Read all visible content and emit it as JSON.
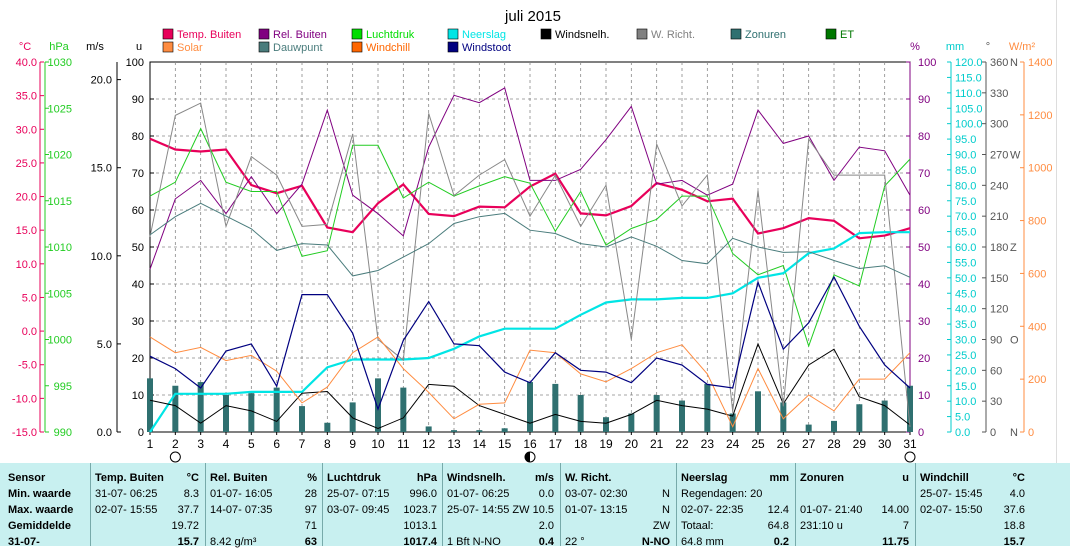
{
  "chart_data": {
    "type": "line",
    "title": "juli 2015",
    "x": [
      1,
      2,
      3,
      4,
      5,
      6,
      7,
      8,
      9,
      10,
      11,
      12,
      13,
      14,
      15,
      16,
      17,
      18,
      19,
      20,
      21,
      22,
      23,
      24,
      25,
      26,
      27,
      28,
      29,
      30,
      31
    ],
    "axes": {
      "temp_c": {
        "label": "°C",
        "range": [
          -15,
          40
        ],
        "ticks": [
          "40.0",
          "35.0",
          "30.0",
          "25.0",
          "20.0",
          "15.0",
          "10.0",
          "5.0",
          "0.0",
          "-5.0",
          "-10.0",
          "-15.0"
        ]
      },
      "pressure_hpa": {
        "label": "hPa",
        "range": [
          990,
          1030
        ],
        "ticks": [
          "1030",
          "1025",
          "1020",
          "1015",
          "1010",
          "1005",
          "1000",
          "995",
          "990"
        ]
      },
      "wind_ms": {
        "label": "m/s",
        "range": [
          0,
          21
        ],
        "ticks": [
          "20.0",
          "15.0",
          "10.0",
          "5.0",
          "0.0"
        ]
      },
      "hours_u": {
        "label": "u",
        "range": [
          0,
          100
        ],
        "ticks": [
          "100",
          "90",
          "80",
          "70",
          "60",
          "50",
          "40",
          "30",
          "20",
          "10",
          "0"
        ]
      },
      "humidity_pct": {
        "label": "%",
        "range": [
          0,
          100
        ],
        "ticks": [
          "100",
          "90",
          "80",
          "70",
          "60",
          "50",
          "40",
          "30",
          "20",
          "10",
          "0"
        ]
      },
      "rain_mm": {
        "label": "mm",
        "range": [
          0,
          120
        ],
        "ticks": [
          "120.0",
          "115.0",
          "110.0",
          "105.0",
          "100.0",
          "95.0",
          "90.0",
          "85.0",
          "80.0",
          "75.0",
          "70.0",
          "65.0",
          "60.0",
          "55.0",
          "50.0",
          "45.0",
          "40.0",
          "35.0",
          "30.0",
          "25.0",
          "20.0",
          "15.0",
          "10.0",
          "5.0",
          "0.0"
        ]
      },
      "direction_deg": {
        "label": "°",
        "range": [
          0,
          360
        ],
        "ticks": [
          "360",
          "330",
          "300",
          "270",
          "240",
          "210",
          "180",
          "150",
          "120",
          "90",
          "60",
          "30",
          "0"
        ],
        "compass": {
          "360": "N",
          "270": "W",
          "180": "Z",
          "90": "O",
          "0": "N"
        }
      },
      "solar_wm2": {
        "label": "W/m²",
        "range": [
          0,
          1400
        ],
        "ticks": [
          "1400",
          "1200",
          "1000",
          "800",
          "600",
          "400",
          "200",
          "0"
        ]
      }
    },
    "legend": [
      {
        "name": "Temp. Buiten",
        "color": "#e8005a"
      },
      {
        "name": "Rel. Buiten",
        "color": "#800080"
      },
      {
        "name": "Luchtdruk",
        "color": "#00dd00"
      },
      {
        "name": "Neerslag",
        "color": "#00e5e5"
      },
      {
        "name": "Windsnelh.",
        "color": "#000000"
      },
      {
        "name": "W. Richt.",
        "color": "#808080"
      },
      {
        "name": "Zonuren",
        "color": "#2f7070"
      },
      {
        "name": "ET",
        "color": "#007700"
      },
      {
        "name": "Solar",
        "color": "#ff8c40"
      },
      {
        "name": "Dauwpunt",
        "color": "#4a7c7c"
      },
      {
        "name": "Windchill",
        "color": "#ff6600"
      },
      {
        "name": "Windstoot",
        "color": "#000080"
      }
    ],
    "series": [
      {
        "name": "Temp. Buiten",
        "axis": "temp_c",
        "color": "#e8005a",
        "width": 2.2,
        "values": [
          28.6,
          27.0,
          26.7,
          27.0,
          21.7,
          20.5,
          21.6,
          15.4,
          14.7,
          19.0,
          21.8,
          17.4,
          17.1,
          18.5,
          18.4,
          21.5,
          23.4,
          17.5,
          17.2,
          18.6,
          22.0,
          21.0,
          19.3,
          19.7,
          14.5,
          15.3,
          16.8,
          16.4,
          13.8,
          14.2,
          15.3
        ]
      },
      {
        "name": "Rel. Buiten",
        "axis": "humidity_pct",
        "color": "#800080",
        "width": 1,
        "values": [
          44,
          63,
          68,
          59,
          69,
          59,
          67,
          87,
          64,
          59,
          53,
          77,
          91,
          89,
          93,
          68,
          68,
          71,
          79,
          88,
          67,
          68,
          64,
          67,
          87,
          78,
          80,
          68,
          77,
          76,
          64
        ]
      },
      {
        "name": "Luchtdruk",
        "axis": "pressure_hpa",
        "color": "#22cc22",
        "width": 1,
        "values": [
          1015.5,
          1017.0,
          1022.8,
          1017.0,
          1016.0,
          1016.0,
          1009.0,
          1009.6,
          1021.0,
          1021.0,
          1015.3,
          1017.0,
          1015.5,
          1016.6,
          1017.6,
          1016.9,
          1011.7,
          1016.0,
          1010.2,
          1012.0,
          1013.0,
          1015.5,
          1015.5,
          1009.3,
          1007.0,
          1008.0,
          999.3,
          1007.0,
          1005.8,
          1016.6,
          1019.5
        ]
      },
      {
        "name": "Neerslag",
        "axis": "rain_mm",
        "color": "#00e5e5",
        "width": 2.2,
        "values": [
          0,
          12.4,
          12.4,
          12.4,
          13.0,
          13.0,
          13.0,
          21.0,
          23.5,
          23.5,
          23.5,
          24.0,
          27.0,
          31.0,
          33.5,
          33.5,
          33.5,
          38.0,
          42.0,
          43.0,
          43.0,
          43.5,
          43.5,
          45.0,
          50.0,
          51.5,
          58.0,
          59.5,
          64.5,
          64.8,
          64.8
        ]
      },
      {
        "name": "Windsnelh.",
        "axis": "wind_ms",
        "color": "#000000",
        "width": 1,
        "values": [
          1.8,
          1.5,
          0.5,
          1.5,
          1.2,
          0.6,
          2.2,
          2.3,
          0.8,
          0.2,
          0.8,
          2.7,
          2.6,
          1.5,
          1.0,
          0.5,
          1.0,
          0.6,
          0.5,
          1.0,
          1.8,
          1.5,
          1.3,
          0.9,
          5.0,
          1.6,
          3.8,
          4.7,
          2.0,
          1.5,
          0.4
        ]
      },
      {
        "name": "W. Richt.",
        "axis": "direction_deg",
        "color": "#888888",
        "width": 1,
        "values": [
          190,
          308,
          320,
          200,
          268,
          250,
          200,
          202,
          290,
          90,
          70,
          310,
          230,
          250,
          265,
          210,
          250,
          200,
          240,
          90,
          280,
          220,
          250,
          20,
          235,
          25,
          285,
          250,
          250,
          250,
          5
        ]
      },
      {
        "name": "Solar",
        "axis": "solar_wm2",
        "color": "#ff8c40",
        "width": 1,
        "values": [
          360,
          300,
          320,
          270,
          290,
          230,
          110,
          170,
          300,
          360,
          240,
          150,
          50,
          105,
          110,
          310,
          300,
          220,
          190,
          240,
          300,
          330,
          220,
          20,
          240,
          50,
          140,
          80,
          200,
          200,
          300
        ]
      },
      {
        "name": "Dauwpunt",
        "axis": "temp_c",
        "color": "#4a7c7c",
        "width": 1,
        "values": [
          14.3,
          17.0,
          19.0,
          17.1,
          15.2,
          12.0,
          13.0,
          12.8,
          8.2,
          9.0,
          11.0,
          13.0,
          16.0,
          17.0,
          17.5,
          15.0,
          14.5,
          13.0,
          12.5,
          14.0,
          12.6,
          10.5,
          10.0,
          13.8,
          12.5,
          11.7,
          11.8,
          10.5,
          9.3,
          9.7,
          8.0
        ]
      },
      {
        "name": "Windchill",
        "axis": "temp_c",
        "color": "#ff6600",
        "width": 1,
        "values": [
          null,
          null,
          null,
          null,
          null,
          null,
          null,
          null,
          null,
          null,
          null,
          null,
          null,
          null,
          null,
          null,
          null,
          null,
          null,
          null,
          null,
          null,
          null,
          null,
          null,
          null,
          null,
          null,
          null,
          null,
          null
        ]
      },
      {
        "name": "Windstoot",
        "axis": "wind_ms",
        "color": "#000080",
        "width": 1.2,
        "values": [
          4.3,
          3.6,
          2.5,
          4.6,
          5.0,
          2.6,
          7.8,
          7.8,
          5.6,
          1.3,
          5.2,
          7.4,
          5.0,
          4.9,
          3.4,
          2.8,
          4.5,
          3.5,
          3.4,
          2.8,
          4.2,
          3.8,
          2.7,
          2.5,
          8.5,
          4.7,
          6.2,
          8.8,
          6.0,
          3.8,
          2.5
        ]
      },
      {
        "name": "Zonuren",
        "axis": "hours_u",
        "color": "#2f7070",
        "type": "bar",
        "values": [
          14.5,
          12.5,
          13.5,
          10.0,
          10.5,
          12.0,
          7.0,
          2.5,
          8.0,
          14.5,
          12.0,
          1.5,
          0.5,
          0.5,
          1.0,
          13.5,
          13.0,
          10.0,
          4.0,
          5.0,
          10.0,
          8.5,
          13.0,
          5.0,
          11.0,
          8.0,
          2.0,
          3.0,
          7.5,
          8.5,
          12.5
        ]
      }
    ],
    "markers": [
      {
        "day": 2,
        "shape": "open-circle"
      },
      {
        "day": 16,
        "shape": "half-circle"
      },
      {
        "day": 31,
        "shape": "open-circle"
      }
    ],
    "grid": true,
    "legend_position": "top"
  },
  "stats": {
    "row_labels": [
      "Sensor",
      "Min. waarde",
      "Max. waarde",
      "Gemiddelde",
      "31-07-"
    ],
    "columns": [
      {
        "header": "Temp. Buiten",
        "unit": "°C",
        "rows": [
          [
            "31-07-  06:25",
            "8.3"
          ],
          [
            "02-07-  15:55",
            "37.7"
          ],
          [
            "",
            "19.72"
          ],
          [
            "",
            "15.7"
          ]
        ]
      },
      {
        "header": "Rel. Buiten",
        "unit": "%",
        "rows": [
          [
            "01-07-  16:05",
            "28"
          ],
          [
            "14-07-  07:35",
            "97"
          ],
          [
            "",
            "71"
          ],
          [
            "8.42 g/m³",
            "63"
          ]
        ]
      },
      {
        "header": "Luchtdruk",
        "unit": "hPa",
        "rows": [
          [
            "25-07-  07:15",
            "996.0"
          ],
          [
            "03-07-  09:45",
            "1023.7"
          ],
          [
            "",
            "1013.1"
          ],
          [
            "",
            "1017.4"
          ]
        ]
      },
      {
        "header": "Windsnelh.",
        "unit": "m/s",
        "rows": [
          [
            "01-07-  06:25",
            "0.0"
          ],
          [
            "25-07-  14:55",
            "ZW 10.5"
          ],
          [
            "",
            "2.0"
          ],
          [
            "1 Bft N-NO",
            "0.4"
          ]
        ]
      },
      {
        "header": "W. Richt.",
        "unit": "",
        "rows": [
          [
            "03-07-  02:30",
            "N"
          ],
          [
            "01-07-  13:15",
            "N"
          ],
          [
            "",
            "ZW"
          ],
          [
            "22 °",
            "N-NO"
          ]
        ]
      },
      {
        "header": "Neerslag",
        "unit": "mm",
        "rows": [
          [
            "Regendagen: 20",
            ""
          ],
          [
            "02-07-  22:35",
            "12.4"
          ],
          [
            "Totaal:",
            "64.8"
          ],
          [
            "64.8 mm",
            "0.2"
          ]
        ]
      },
      {
        "header": "Zonuren",
        "unit": "u",
        "rows": [
          [
            "",
            ""
          ],
          [
            "01-07-  21:40",
            "14.00"
          ],
          [
            "231:10 u",
            "7"
          ],
          [
            "",
            "11.75"
          ]
        ]
      },
      {
        "header": "Windchill",
        "unit": "°C",
        "rows": [
          [
            "25-07-  15:45",
            "4.0"
          ],
          [
            "02-07-  15:50",
            "37.6"
          ],
          [
            "",
            "18.8"
          ],
          [
            "",
            "15.7"
          ]
        ]
      }
    ]
  }
}
